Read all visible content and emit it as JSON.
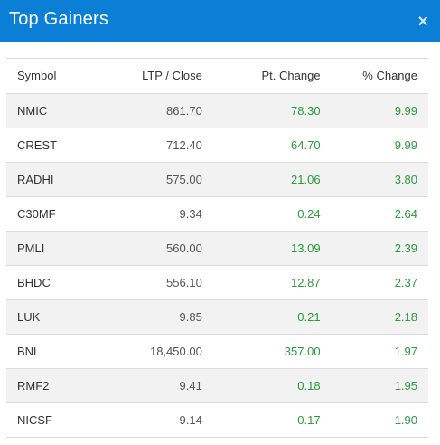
{
  "modal": {
    "title": "Top Gainers",
    "close_icon": "×"
  },
  "colors": {
    "header_bg": "#0b7fd6",
    "positive": "#2a9a3a"
  },
  "table": {
    "headers": {
      "symbol": "Symbol",
      "ltp": "LTP / Close",
      "pt_change": "Pt. Change",
      "pct_change": "% Change"
    },
    "rows": [
      {
        "symbol": "NMIC",
        "ltp": "861.70",
        "pt_change": "78.30",
        "pct_change": "9.99"
      },
      {
        "symbol": "CREST",
        "ltp": "712.40",
        "pt_change": "64.70",
        "pct_change": "9.99"
      },
      {
        "symbol": "RADHI",
        "ltp": "575.00",
        "pt_change": "21.06",
        "pct_change": "3.80"
      },
      {
        "symbol": "C30MF",
        "ltp": "9.34",
        "pt_change": "0.24",
        "pct_change": "2.64"
      },
      {
        "symbol": "PMLI",
        "ltp": "560.00",
        "pt_change": "13.09",
        "pct_change": "2.39"
      },
      {
        "symbol": "BHDC",
        "ltp": "556.10",
        "pt_change": "12.87",
        "pct_change": "2.37"
      },
      {
        "symbol": "LUK",
        "ltp": "9.85",
        "pt_change": "0.21",
        "pct_change": "2.18"
      },
      {
        "symbol": "BNL",
        "ltp": "18,450.00",
        "pt_change": "357.00",
        "pct_change": "1.97"
      },
      {
        "symbol": "RMF2",
        "ltp": "9.41",
        "pt_change": "0.18",
        "pct_change": "1.95"
      },
      {
        "symbol": "NICSF",
        "ltp": "9.14",
        "pt_change": "0.17",
        "pct_change": "1.90"
      }
    ]
  }
}
